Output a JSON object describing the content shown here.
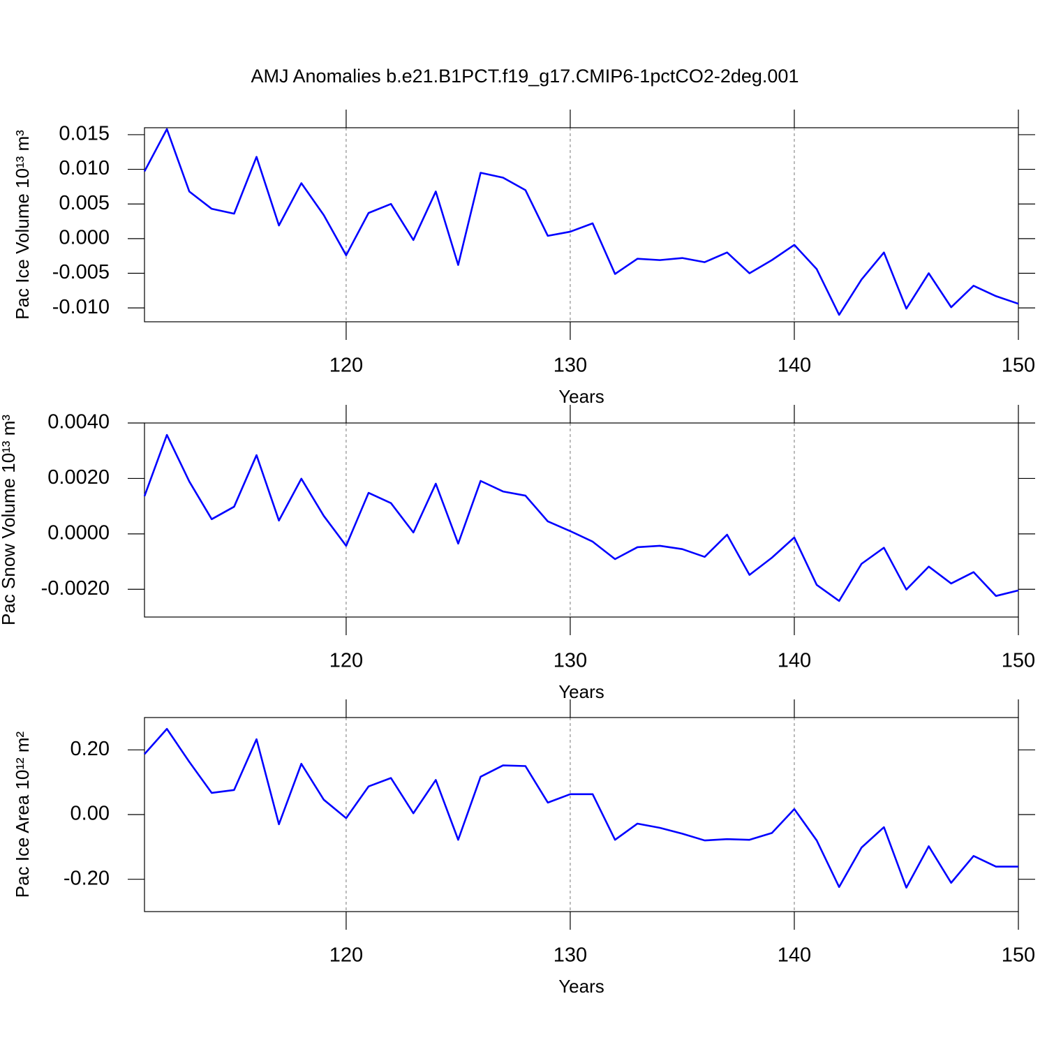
{
  "chart_data": [
    {
      "type": "line",
      "title": "AMJ Anomalies b.e21.B1PCT.f19_g17.CMIP6-1pctCO2-2deg.001",
      "xlabel": "Years",
      "ylabel": "Pac Ice Volume 10¹³ m³",
      "color": "#0000ff",
      "xgrid": true,
      "x": [
        111,
        112,
        113,
        114,
        115,
        116,
        117,
        118,
        119,
        120,
        121,
        122,
        123,
        124,
        125,
        126,
        127,
        128,
        129,
        130,
        131,
        132,
        133,
        134,
        135,
        136,
        137,
        138,
        139,
        140,
        141,
        142,
        143,
        144,
        145,
        146,
        147,
        148,
        149,
        150
      ],
      "values": [
        0.0097,
        0.0158,
        0.0068,
        0.0043,
        0.0036,
        0.0118,
        0.0019,
        0.008,
        0.0034,
        -0.0024,
        0.0037,
        0.005,
        -0.0002,
        0.0068,
        -0.0038,
        0.0095,
        0.0088,
        0.007,
        0.0004,
        0.001,
        0.0022,
        -0.0051,
        -0.0029,
        -0.0031,
        -0.0028,
        -0.0034,
        -0.002,
        -0.005,
        -0.0031,
        -0.0009,
        -0.0044,
        -0.011,
        -0.0059,
        -0.002,
        -0.0101,
        -0.005,
        -0.0099,
        -0.0068,
        -0.0083,
        -0.0094
      ],
      "xlim": [
        111,
        150
      ],
      "xticks": [
        120,
        130,
        140,
        150
      ],
      "ylim": [
        -0.012,
        0.016
      ],
      "yticks": [
        0.015,
        {
          "value": 0.01,
          "label": "0.010"
        },
        0.005,
        {
          "value": 0,
          "label": "0.000"
        },
        -0.005,
        {
          "value": -0.01,
          "label": "-0.010"
        }
      ]
    },
    {
      "type": "line",
      "xlabel": "Years",
      "ylabel": "Pac Snow Volume 10¹³ m³",
      "color": "#0000ff",
      "xgrid": true,
      "x": [
        111,
        112,
        113,
        114,
        115,
        116,
        117,
        118,
        119,
        120,
        121,
        122,
        123,
        124,
        125,
        126,
        127,
        128,
        129,
        130,
        131,
        132,
        133,
        134,
        135,
        136,
        137,
        138,
        139,
        140,
        141,
        142,
        143,
        144,
        145,
        146,
        147,
        148,
        149,
        150
      ],
      "values": [
        0.00136,
        0.00357,
        0.00189,
        0.00053,
        0.00098,
        0.00284,
        0.00048,
        0.00199,
        0.00065,
        -0.00043,
        0.00148,
        0.00111,
        5e-05,
        0.00181,
        -0.00035,
        0.00191,
        0.00153,
        0.00138,
        0.00045,
        0.0001,
        -0.00028,
        -0.00091,
        -0.00048,
        -0.00043,
        -0.00055,
        -0.00083,
        -3e-05,
        -0.00148,
        -0.00086,
        -0.00013,
        -0.00184,
        -0.00242,
        -0.00108,
        -0.0005,
        -0.00201,
        -0.00118,
        -0.00179,
        -0.00138,
        -0.00224,
        -0.00204
      ],
      "xlim": [
        111,
        150
      ],
      "xticks": [
        120,
        130,
        140,
        150
      ],
      "ylim": [
        -0.003,
        0.004
      ],
      "yticks": [
        {
          "value": 0.004,
          "label": "0.0040"
        },
        {
          "value": 0.002,
          "label": "0.0020"
        },
        {
          "value": 0,
          "label": "0.0000"
        },
        {
          "value": -0.002,
          "label": "-0.0020"
        }
      ]
    },
    {
      "type": "line",
      "xlabel": "Years",
      "ylabel": "Pac Ice Area 10¹² m²",
      "color": "#0000ff",
      "xgrid": true,
      "x": [
        111,
        112,
        113,
        114,
        115,
        116,
        117,
        118,
        119,
        120,
        121,
        122,
        123,
        124,
        125,
        126,
        127,
        128,
        129,
        130,
        131,
        132,
        133,
        134,
        135,
        136,
        137,
        138,
        139,
        140,
        141,
        142,
        143,
        144,
        145,
        146,
        147,
        148,
        149,
        150
      ],
      "values": [
        0.187,
        0.265,
        0.163,
        0.067,
        0.076,
        0.233,
        -0.03,
        0.157,
        0.046,
        -0.011,
        0.087,
        0.113,
        0.004,
        0.107,
        -0.078,
        0.117,
        0.152,
        0.15,
        0.037,
        0.063,
        0.063,
        -0.078,
        -0.028,
        -0.041,
        -0.059,
        -0.08,
        -0.076,
        -0.078,
        -0.057,
        0.017,
        -0.08,
        -0.224,
        -0.102,
        -0.039,
        -0.226,
        -0.098,
        -0.211,
        -0.128,
        -0.161,
        -0.161
      ],
      "xlim": [
        111,
        150
      ],
      "xticks": [
        120,
        130,
        140,
        150
      ],
      "ylim": [
        -0.3,
        0.3
      ],
      "yticks": [
        {
          "value": 0.2,
          "label": "0.20"
        },
        {
          "value": 0,
          "label": "0.00"
        },
        {
          "value": -0.2,
          "label": "-0.20"
        }
      ]
    }
  ]
}
